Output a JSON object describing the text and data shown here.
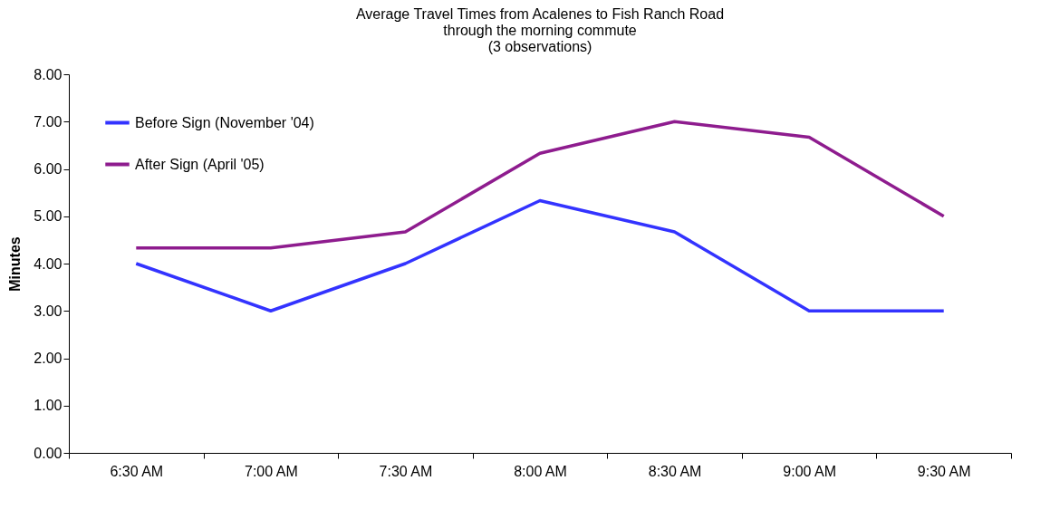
{
  "chart_data": {
    "type": "line",
    "title": "Average Travel Times from Acalenes to Fish Ranch Road",
    "subtitle": "through the morning commute\n(3 observations)",
    "ylabel": "Minutes",
    "categories": [
      "6:30 AM",
      "7:00 AM",
      "7:30 AM",
      "8:00 AM",
      "8:30 AM",
      "9:00 AM",
      "9:30 AM"
    ],
    "series": [
      {
        "name": "Before Sign (November '04)",
        "color": "#3333ff",
        "values": [
          4,
          3,
          4,
          5.33,
          4.67,
          3,
          3
        ]
      },
      {
        "name": "After Sign (April '05)",
        "color": "#8e1c8e",
        "values": [
          4.33,
          4.33,
          4.67,
          6.33,
          7,
          6.67,
          5
        ]
      }
    ],
    "ylim": [
      0,
      8
    ],
    "yticks": [
      {
        "value": 0,
        "label": "0.00"
      },
      {
        "value": 1,
        "label": "1.00"
      },
      {
        "value": 2,
        "label": "2.00"
      },
      {
        "value": 3,
        "label": "3.00"
      },
      {
        "value": 4,
        "label": "4.00"
      },
      {
        "value": 5,
        "label": "5.00"
      },
      {
        "value": 6,
        "label": "6.00"
      },
      {
        "value": 7,
        "label": "7.00"
      },
      {
        "value": 8,
        "label": "8.00"
      }
    ],
    "grid": false,
    "legend": "top left",
    "marker": "none",
    "line_style": "solid"
  }
}
